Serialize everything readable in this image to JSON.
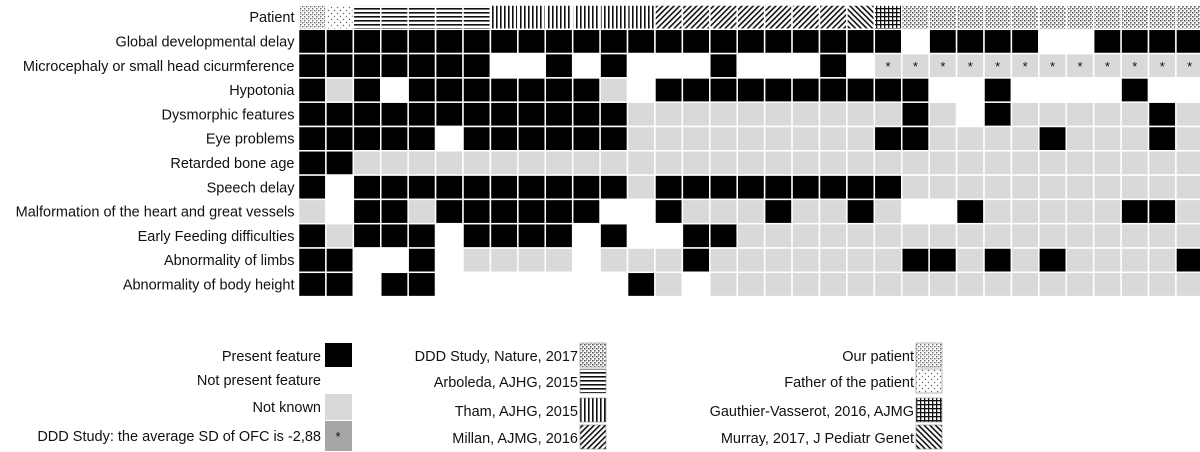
{
  "chart_data": {
    "type": "heatmap",
    "header_label": "Patient",
    "features": [
      "Global developmental delay",
      "Microcephaly or small head cicurmference",
      "Hypotonia",
      "Dysmorphic features",
      "Eye problems",
      "Retarded bone age",
      "Speech delay",
      "Malformation of the heart and great vessels",
      "Early Feeding difficulties",
      "Abnormality of limbs",
      "Abnormality of body height"
    ],
    "columns": [
      {
        "source": "our-patient"
      },
      {
        "source": "father"
      },
      {
        "source": "arboleda"
      },
      {
        "source": "arboleda"
      },
      {
        "source": "arboleda"
      },
      {
        "source": "arboleda"
      },
      {
        "source": "arboleda"
      },
      {
        "source": "tham"
      },
      {
        "source": "tham"
      },
      {
        "source": "tham"
      },
      {
        "source": "tham"
      },
      {
        "source": "tham"
      },
      {
        "source": "tham"
      },
      {
        "source": "millan"
      },
      {
        "source": "millan"
      },
      {
        "source": "millan"
      },
      {
        "source": "millan"
      },
      {
        "source": "millan"
      },
      {
        "source": "millan"
      },
      {
        "source": "millan"
      },
      {
        "source": "murray"
      },
      {
        "source": "gauthier"
      },
      {
        "source": "ddd"
      },
      {
        "source": "ddd"
      },
      {
        "source": "ddd"
      },
      {
        "source": "ddd"
      },
      {
        "source": "ddd"
      },
      {
        "source": "ddd"
      },
      {
        "source": "ddd"
      },
      {
        "source": "ddd"
      },
      {
        "source": "ddd"
      },
      {
        "source": "ddd"
      },
      {
        "source": "ddd"
      }
    ],
    "legend_states": [
      {
        "key": "P",
        "label": "Present feature"
      },
      {
        "key": "N",
        "label": "Not present feature"
      },
      {
        "key": "U",
        "label": "Not known"
      },
      {
        "key": "S",
        "label": "DDD Study: the average SD of OFC is -2,88",
        "symbol": "*"
      }
    ],
    "legend_sources": [
      {
        "key": "ddd",
        "label": "DDD Study, Nature,  2017"
      },
      {
        "key": "arboleda",
        "label": "Arboleda, AJHG, 2015"
      },
      {
        "key": "tham",
        "label": "Tham, AJHG, 2015"
      },
      {
        "key": "millan",
        "label": "Millan, AJMG, 2016"
      },
      {
        "key": "our-patient",
        "label": "Our patient"
      },
      {
        "key": "father",
        "label": "Father of the patient"
      },
      {
        "key": "gauthier",
        "label": "Gauthier-Vasserot, 2016, AJMG"
      },
      {
        "key": "murray",
        "label": "Murray, 2017, J Pediatr Genet"
      }
    ],
    "grid": [
      "PPPPPPPPPPPPPPPPPPPPPPNPPPPNNPPPP",
      "PPPPPPPNNPNPNNNPNNNPNSSSSSSSSSSSS",
      "PUPNPPPPPPPUNPPPPPPPPPPNNPNNNNPNN",
      "PPPPPPPPPPPPUUUUUUUUUUPUNPUUUUUPU",
      "PPPPPNPPPPPPUUUUUUUUUPPUUUUPUUUPU",
      "PPUUUUUUUUUUUUUUUUUUUUUUUUUUUUUUU",
      "PNPPPPPPPPPPUPPPPPPPPPUUUUUUUUUUU",
      "UNPPUPPPPPPNNPUUUPUUPUNNPUUUUUPPU",
      "PUPPPNPPPPNPNNPPUUUUUUUUUUUUUUUUU",
      "PPNNPNUUUUNUUUPUUUUUUUPPUPUPUUUUP",
      "PPNPPNNNNNNNPUNUUUUUUUUUUUUUUUUUU"
    ]
  },
  "colors": {
    "present": "#000000",
    "unknown": "#d9d9d9",
    "not_present": "#ffffff",
    "ddd_sd_cell": "#a6a6a6",
    "pattern_ink": "#222222"
  }
}
